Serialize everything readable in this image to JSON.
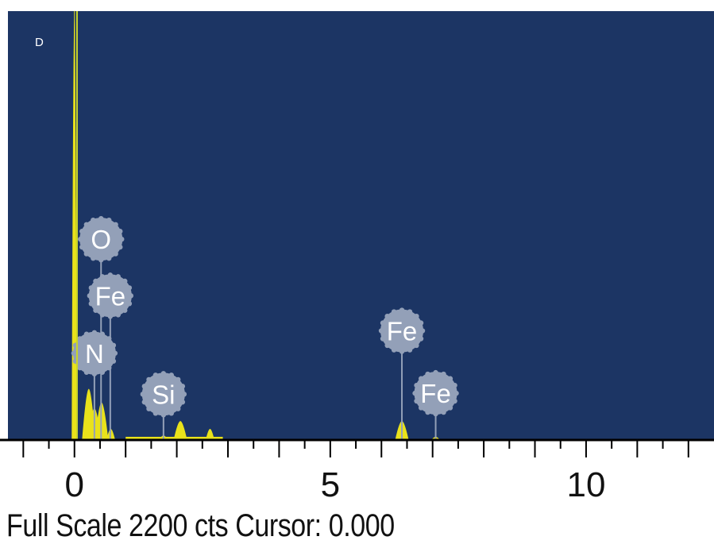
{
  "chart_data": {
    "type": "line",
    "panel_label": "D",
    "x_range": [
      -1.3,
      12.5
    ],
    "y_range": [
      0,
      2200
    ],
    "x_ticks": [
      0,
      5,
      10
    ],
    "x_tick_labels": [
      "0",
      "5",
      "10"
    ],
    "minor_tick_step": 0.5,
    "full_scale_counts": 2200,
    "status": {
      "full_scale_label": "Full Scale 2200 cts",
      "cursor_label": "Cursor: 0.000"
    },
    "spectrum": [
      {
        "energy": 0.0,
        "counts": 2200
      },
      {
        "energy": 0.28,
        "counts": 260
      },
      {
        "energy": 0.39,
        "counts": 160
      },
      {
        "energy": 0.53,
        "counts": 190
      },
      {
        "energy": 0.71,
        "counts": 55
      },
      {
        "energy": 1.74,
        "counts": 22
      },
      {
        "energy": 2.07,
        "counts": 95
      },
      {
        "energy": 2.65,
        "counts": 55
      },
      {
        "energy": 6.4,
        "counts": 95
      },
      {
        "energy": 7.06,
        "counts": 15
      }
    ],
    "element_markers": [
      {
        "label": "O",
        "energy": 0.52,
        "level": 1030
      },
      {
        "label": "Fe",
        "energy": 0.7,
        "level": 740
      },
      {
        "label": "N",
        "energy": 0.39,
        "level": 445
      },
      {
        "label": "Si",
        "energy": 1.74,
        "level": 235
      },
      {
        "label": "Fe",
        "energy": 6.4,
        "level": 560
      },
      {
        "label": "Fe",
        "energy": 7.06,
        "level": 240
      }
    ],
    "colors": {
      "background": "#1c3564",
      "spectrum": "#e9e21b",
      "marker_fill": "#93a0b8",
      "marker_text": "#ffffff",
      "axis": "#000000",
      "cursor_line": "#c8d62a"
    }
  }
}
